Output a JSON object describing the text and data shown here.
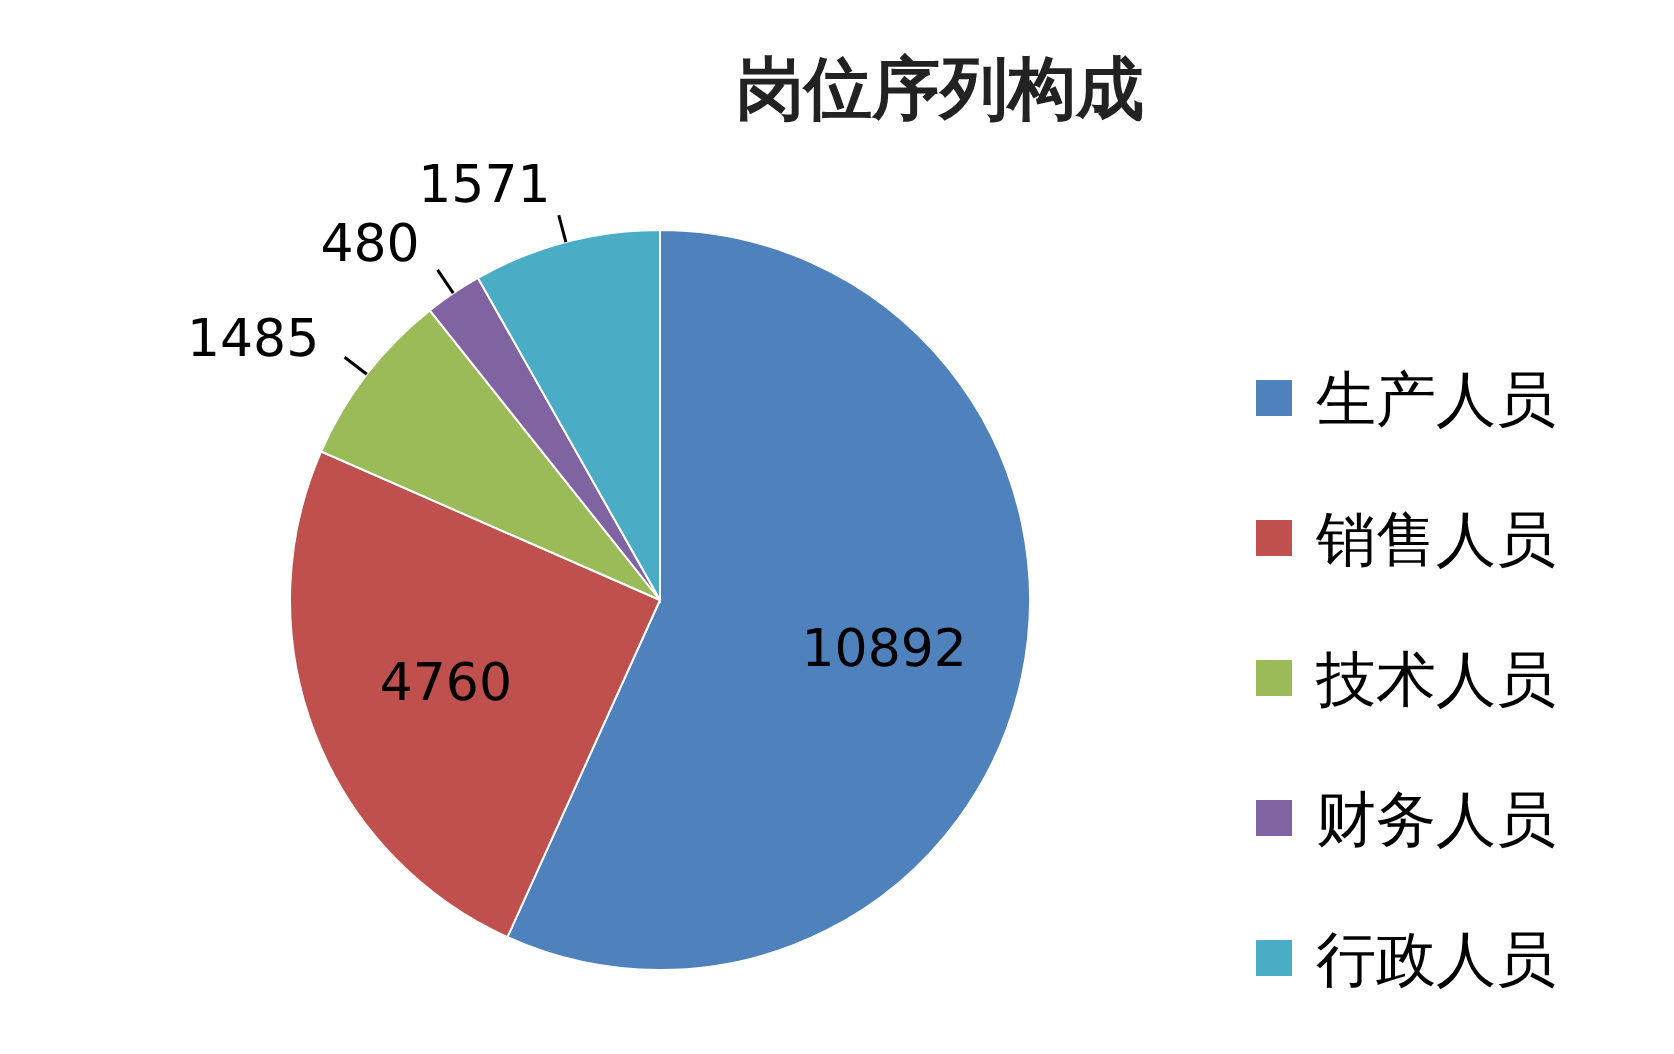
{
  "chart_data": {
    "type": "pie",
    "title": "岗位序列构成",
    "categories": [
      "生产人员",
      "销售人员",
      "技术人员",
      "财务人员",
      "行政人员"
    ],
    "values": [
      10892,
      4760,
      1485,
      480,
      1571
    ],
    "colors": [
      "#4f81bd",
      "#c0504d",
      "#9bbb59",
      "#8064a2",
      "#4bacc6"
    ],
    "data_labels": true,
    "legend": "right"
  }
}
